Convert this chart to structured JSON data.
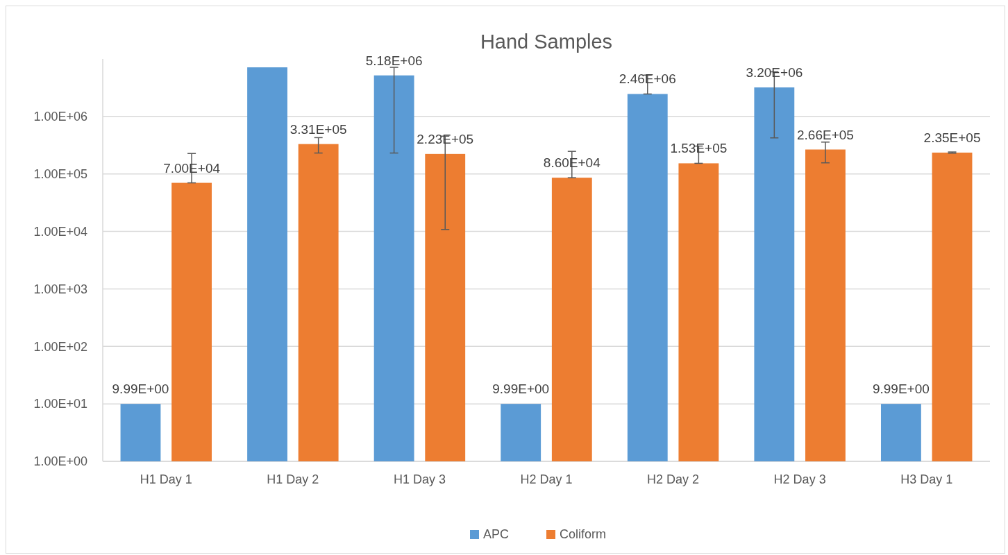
{
  "chart_data": {
    "type": "bar",
    "title": "Hand Samples",
    "categories": [
      "H1 Day 1",
      "H1 Day 2",
      "H1 Day 3",
      "H2 Day 1",
      "H2 Day 2",
      "H2 Day 3",
      "H3 Day 1"
    ],
    "series": [
      {
        "name": "APC",
        "color": "#5b9bd5",
        "values": [
          9.99,
          7150000,
          5180000,
          9.99,
          2460000,
          3200000,
          9.99
        ],
        "value_labels": [
          "9.99E+00",
          null,
          "5.18E+06",
          "9.99E+00",
          "2.46E+06",
          "3.20E+06",
          "9.99E+00"
        ],
        "errors": [
          null,
          null,
          [
            231000,
            7150000
          ],
          null,
          [
            2460000,
            5240000
          ],
          [
            424000,
            5980000
          ],
          null
        ]
      },
      {
        "name": "Coliform",
        "color": "#ed7d31",
        "values": [
          70000,
          331000,
          223000,
          86000,
          153000,
          266000,
          235000
        ],
        "value_labels": [
          "7.00E+04",
          "3.31E+05",
          "2.23E+05",
          "8.60E+04",
          "1.53E+05",
          "2.66E+05",
          "2.35E+05"
        ],
        "errors": [
          [
            70000,
            227000
          ],
          [
            231000,
            428000
          ],
          [
            10800,
            454000
          ],
          [
            86000,
            247000
          ],
          [
            153000,
            305000
          ],
          [
            156000,
            358000
          ],
          [
            230000,
            241000
          ]
        ]
      }
    ],
    "log": true,
    "ylim": [
      1,
      10000000
    ],
    "yticks": [
      {
        "value": 1,
        "label": "1.00E+00"
      },
      {
        "value": 10,
        "label": "1.00E+01"
      },
      {
        "value": 100,
        "label": "1.00E+02"
      },
      {
        "value": 1000,
        "label": "1.00E+03"
      },
      {
        "value": 10000,
        "label": "1.00E+04"
      },
      {
        "value": 100000,
        "label": "1.00E+05"
      },
      {
        "value": 1000000,
        "label": "1.00E+06"
      }
    ],
    "grid": "y",
    "legend": "bottom"
  }
}
